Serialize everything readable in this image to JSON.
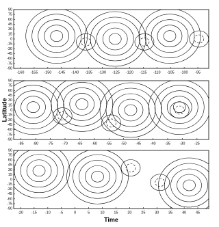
{
  "chart_data": [
    {
      "type": "contour",
      "xlim": [
        -162.5,
        -91
      ],
      "xticks": [
        -160,
        -155,
        -150,
        -145,
        -140,
        -135,
        -130,
        -125,
        -120,
        -115,
        -110,
        -105,
        -100,
        -95
      ],
      "ylim": [
        -90,
        90
      ],
      "yticks": [
        90,
        75,
        60,
        45,
        30,
        15,
        0,
        -15,
        -30,
        -45,
        -60,
        -75,
        -90
      ]
    },
    {
      "type": "contour",
      "xlim": [
        -87.5,
        -21
      ],
      "xticks": [
        -85,
        -80,
        -75,
        -70,
        -65,
        -60,
        -55,
        -50,
        -45,
        -40,
        -35,
        -30,
        -25
      ],
      "ylim": [
        -90,
        90
      ],
      "yticks": [
        90,
        75,
        60,
        45,
        30,
        15,
        0,
        -15,
        -30,
        -45,
        -60,
        -75,
        -90
      ],
      "ylabel": "Latitude"
    },
    {
      "type": "contour",
      "xlim": [
        -22.5,
        49
      ],
      "xticks": [
        -20,
        -15,
        -10,
        -5,
        0,
        5,
        10,
        15,
        20,
        25,
        30,
        35,
        40,
        45
      ],
      "ylim": [
        -90,
        90
      ],
      "yticks": [
        90,
        75,
        60,
        45,
        30,
        15,
        0,
        -15,
        -30,
        -45,
        -60,
        -75,
        -90
      ],
      "xlabel": "Time"
    }
  ]
}
